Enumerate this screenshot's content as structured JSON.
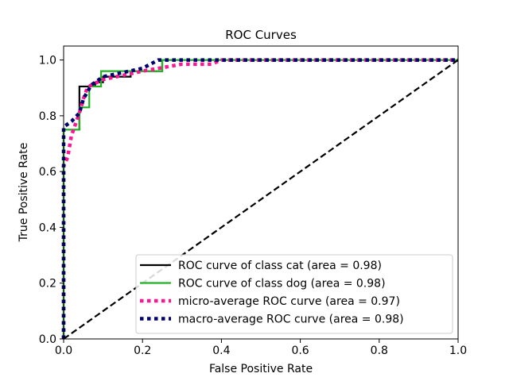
{
  "chart_data": {
    "type": "line",
    "title": "ROC Curves",
    "xlabel": "False Positive Rate",
    "ylabel": "True Positive Rate",
    "xlim": [
      0.0,
      1.0
    ],
    "ylim": [
      0.0,
      1.05
    ],
    "xticks": [
      "0.0",
      "0.2",
      "0.4",
      "0.6",
      "0.8",
      "1.0"
    ],
    "yticks": [
      "0.0",
      "0.2",
      "0.4",
      "0.6",
      "0.8",
      "1.0"
    ],
    "grid": false,
    "legend_position": "lower-right",
    "series": [
      {
        "name": "ROC curve of class cat (area = 0.98)",
        "color": "#000000",
        "style": "solid",
        "x": [
          0.0,
          0.0,
          0.0,
          0.04,
          0.04,
          0.04,
          0.04,
          0.04,
          0.08,
          0.08,
          0.1,
          0.1,
          0.17,
          0.17,
          0.25,
          0.25,
          1.0
        ],
        "y": [
          0.0,
          0.65,
          0.75,
          0.75,
          0.8,
          0.86,
          0.87,
          0.905,
          0.905,
          0.92,
          0.92,
          0.94,
          0.94,
          0.96,
          0.96,
          1.0,
          1.0
        ]
      },
      {
        "name": "ROC curve of class dog (area = 0.98)",
        "color": "#22b322",
        "style": "solid",
        "x": [
          0.0,
          0.0,
          0.0,
          0.04,
          0.04,
          0.065,
          0.065,
          0.095,
          0.095,
          0.25,
          0.25,
          1.0
        ],
        "y": [
          0.0,
          0.6,
          0.75,
          0.75,
          0.83,
          0.83,
          0.905,
          0.905,
          0.96,
          0.96,
          1.0,
          1.0
        ]
      },
      {
        "name": "micro-average ROC curve (area = 0.97)",
        "color": "#ff1493",
        "style": "dotted",
        "x": [
          0.0,
          0.0,
          0.0,
          0.0,
          0.01,
          0.02,
          0.03,
          0.04,
          0.05,
          0.06,
          0.07,
          0.1,
          0.2,
          0.3,
          0.375,
          0.4,
          1.0
        ],
        "y": [
          0.0,
          0.38,
          0.55,
          0.62,
          0.65,
          0.73,
          0.77,
          0.81,
          0.86,
          0.9,
          0.91,
          0.93,
          0.96,
          0.985,
          0.985,
          1.0,
          1.0
        ]
      },
      {
        "name": "macro-average ROC curve (area = 0.98)",
        "color": "#000070",
        "style": "dotted",
        "x": [
          0.0,
          0.0,
          0.02,
          0.04,
          0.05,
          0.07,
          0.1,
          0.15,
          0.2,
          0.24,
          0.3,
          1.0
        ],
        "y": [
          0.0,
          0.76,
          0.78,
          0.81,
          0.86,
          0.91,
          0.94,
          0.955,
          0.97,
          1.0,
          1.0,
          1.0
        ]
      },
      {
        "color": "#000000",
        "style": "dashed",
        "x": [
          0.0,
          1.0
        ],
        "y": [
          0.0,
          1.0
        ]
      }
    ]
  }
}
